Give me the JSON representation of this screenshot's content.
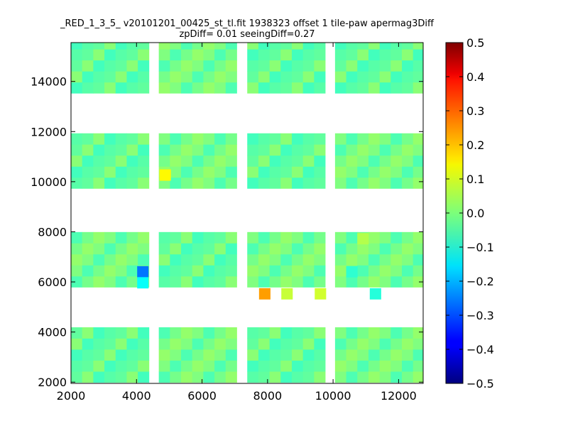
{
  "chart_data": {
    "type": "heatmap",
    "title_line1": "_RED_1_3_5_ v20101201_00425_st_tl.fit 1938323 offset 1 tile-paw apermag3Diff",
    "title_line2": "zpDiff= 0.01 seeingDiff=0.27",
    "xlim": [
      2000,
      12750
    ],
    "ylim": [
      1950,
      15550
    ],
    "x_ticks": [
      2000,
      4000,
      6000,
      8000,
      10000,
      12000
    ],
    "x_tick_labels": [
      "2000",
      "4000",
      "6000",
      "8000",
      "10000",
      "12000"
    ],
    "y_ticks": [
      2000,
      4000,
      6000,
      8000,
      10000,
      12000,
      14000
    ],
    "y_tick_labels": [
      "2000",
      "4000",
      "6000",
      "8000",
      "10000",
      "12000",
      "14000"
    ],
    "grid": false,
    "colorbar": {
      "colormap": "jet",
      "vmin": -0.5,
      "vmax": 0.5,
      "ticks": [
        -0.5,
        -0.4,
        -0.3,
        -0.2,
        -0.1,
        0.0,
        0.1,
        0.2,
        0.3,
        0.4,
        0.5
      ],
      "tick_labels": [
        "−0.5",
        "−0.4",
        "−0.3",
        "−0.2",
        "−0.1",
        "0.0",
        "0.1",
        "0.2",
        "0.3",
        "0.4",
        "0.5"
      ]
    },
    "cell_size": [
      340,
      440
    ],
    "tile_column_bands": [
      [
        2000,
        4050
      ],
      [
        4680,
        7040
      ],
      [
        7380,
        9760
      ],
      [
        10060,
        12760
      ]
    ],
    "tile_row_bands": [
      [
        1990,
        4050
      ],
      [
        5790,
        7930
      ],
      [
        9730,
        11870
      ],
      [
        13530,
        15550
      ]
    ],
    "baseline_value": -0.01,
    "texture_values": [
      -0.04,
      -0.02,
      0.0,
      0.02,
      0.03,
      -0.05,
      0.01,
      -0.03
    ],
    "missing_cells": [
      [
        2000,
        15110
      ],
      [
        2680,
        15110
      ],
      [
        2000,
        14670
      ],
      [
        3360,
        14670
      ],
      [
        3700,
        14670
      ],
      [
        11460,
        14230
      ],
      [
        11800,
        14230
      ],
      [
        12140,
        14230
      ],
      [
        12140,
        14670
      ],
      [
        4020,
        14230
      ],
      [
        4020,
        13790
      ],
      [
        4020,
        15110
      ],
      [
        4020,
        14670
      ],
      [
        10740,
        13790
      ],
      [
        10740,
        14230
      ],
      [
        10740,
        14670
      ],
      [
        6380,
        11370
      ],
      [
        6720,
        11370
      ],
      [
        11800,
        10930
      ],
      [
        12140,
        10930
      ],
      [
        11800,
        10490
      ],
      [
        12140,
        10490
      ],
      [
        4360,
        11370
      ],
      [
        4360,
        10930
      ],
      [
        4360,
        10490
      ],
      [
        4360,
        10050
      ],
      [
        4360,
        9610
      ],
      [
        7740,
        5750
      ],
      [
        8080,
        5750
      ],
      [
        8420,
        5750
      ],
      [
        8760,
        5750
      ],
      [
        9100,
        5750
      ],
      [
        9440,
        5750
      ],
      [
        2000,
        7510
      ],
      [
        2340,
        7510
      ],
      [
        3020,
        7510
      ],
      [
        9440,
        7510
      ],
      [
        9780,
        7510
      ],
      [
        11800,
        7510
      ],
      [
        12140,
        7510
      ],
      [
        11800,
        7070
      ],
      [
        12140,
        7070
      ],
      [
        11800,
        6630
      ],
      [
        12140,
        6630
      ],
      [
        10400,
        6630
      ],
      [
        10400,
        7070
      ],
      [
        10400,
        7510
      ],
      [
        3700,
        3990
      ],
      [
        4020,
        3990
      ],
      [
        4020,
        3550
      ],
      [
        4020,
        3110
      ],
      [
        11800,
        3550
      ],
      [
        12140,
        3550
      ],
      [
        11800,
        3110
      ],
      [
        12140,
        3110
      ],
      [
        11800,
        2670
      ],
      [
        12140,
        2670
      ],
      [
        11800,
        2230
      ],
      [
        12140,
        2230
      ],
      [
        10400,
        2230
      ],
      [
        10400,
        2670
      ],
      [
        10400,
        3110
      ],
      [
        10400,
        3990
      ],
      [
        6720,
        2230
      ],
      [
        7060,
        2230
      ]
    ],
    "extra_cells": [
      {
        "x": 4700,
        "y": 10050,
        "value": 0.13
      },
      {
        "x": 4020,
        "y": 6190,
        "value": -0.26
      },
      {
        "x": 4020,
        "y": 5750,
        "value": -0.12
      },
      {
        "x": 7740,
        "y": 5310,
        "value": 0.22
      },
      {
        "x": 8420,
        "y": 5310,
        "value": 0.07
      },
      {
        "x": 9440,
        "y": 5310,
        "value": 0.08
      },
      {
        "x": 11120,
        "y": 5310,
        "value": -0.09
      },
      {
        "x": 10400,
        "y": 6190,
        "value": -0.08
      },
      {
        "x": 10740,
        "y": 7510,
        "value": 0.05
      }
    ],
    "highlight_cells": [
      {
        "x": 10740,
        "y": 15110,
        "value": 0.06
      },
      {
        "x": 11120,
        "y": 15110,
        "value": 0.08
      },
      {
        "x": 11800,
        "y": 15110,
        "value": 0.07
      },
      {
        "x": 12480,
        "y": 15110,
        "value": 0.06
      },
      {
        "x": 4700,
        "y": 14230,
        "value": 0.08
      },
      {
        "x": 4700,
        "y": 13790,
        "value": 0.07
      },
      {
        "x": 6720,
        "y": 13790,
        "value": 0.08
      },
      {
        "x": 9440,
        "y": 13790,
        "value": 0.06
      },
      {
        "x": 11460,
        "y": 14670,
        "value": -0.07
      },
      {
        "x": 10740,
        "y": 9750,
        "value": 0.05
      },
      {
        "x": 11120,
        "y": 9750,
        "value": 0.07
      },
      {
        "x": 12140,
        "y": 11810,
        "value": 0.05
      },
      {
        "x": 12480,
        "y": 11810,
        "value": -0.06
      },
      {
        "x": 3700,
        "y": 10490,
        "value": -0.07
      },
      {
        "x": 5720,
        "y": 6630,
        "value": -0.06
      },
      {
        "x": 6040,
        "y": 6190,
        "value": 0.05
      },
      {
        "x": 6380,
        "y": 6190,
        "value": 0.05
      },
      {
        "x": 8080,
        "y": 6190,
        "value": 0.08
      },
      {
        "x": 8420,
        "y": 6630,
        "value": -0.07
      },
      {
        "x": 7740,
        "y": 6630,
        "value": 0.05
      },
      {
        "x": 3020,
        "y": 2230,
        "value": 0.06
      },
      {
        "x": 2340,
        "y": 2670,
        "value": 0.05
      },
      {
        "x": 7740,
        "y": 3550,
        "value": 0.05
      },
      {
        "x": 9440,
        "y": 2670,
        "value": 0.06
      },
      {
        "x": 3700,
        "y": 3550,
        "value": 0.05
      },
      {
        "x": 2680,
        "y": 7510,
        "value": 0.04
      }
    ]
  }
}
